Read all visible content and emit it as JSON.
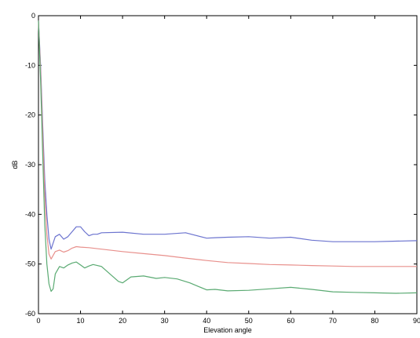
{
  "chart_data": {
    "type": "line",
    "xlabel": "Elevation angle",
    "ylabel": "dB",
    "xlim": [
      0,
      90
    ],
    "ylim": [
      -60,
      0
    ],
    "xticks": [
      0,
      10,
      20,
      30,
      40,
      50,
      60,
      70,
      80,
      90
    ],
    "yticks": [
      0,
      -10,
      -20,
      -30,
      -40,
      -50,
      -60
    ],
    "grid": false,
    "legend": "none",
    "series": [
      {
        "color": "#6c74cf",
        "x": [
          0,
          0.5,
          1,
          1.5,
          2,
          2.5,
          3,
          4,
          5,
          6,
          7,
          8,
          9,
          10,
          11,
          12,
          13,
          14,
          15,
          20,
          25,
          30,
          35,
          40,
          42,
          45,
          50,
          55,
          60,
          65,
          70,
          75,
          80,
          85,
          90
        ],
        "y": [
          -1,
          -10,
          -22,
          -33,
          -40,
          -45,
          -47,
          -44.5,
          -44,
          -45,
          -44.5,
          -43.5,
          -42.5,
          -42.5,
          -43.5,
          -44.3,
          -44,
          -44,
          -43.7,
          -43.6,
          -44,
          -44,
          -43.7,
          -44.8,
          -44.7,
          -44.6,
          -44.5,
          -44.8,
          -44.6,
          -45.2,
          -45.5,
          -45.5,
          -45.5,
          -45.4,
          -45.3
        ]
      },
      {
        "color": "#e8908c",
        "x": [
          0,
          0.5,
          1,
          1.5,
          2,
          2.5,
          3,
          4,
          5,
          6,
          7,
          8,
          9,
          10,
          12,
          15,
          20,
          25,
          30,
          35,
          40,
          45,
          50,
          55,
          60,
          65,
          70,
          75,
          80,
          85,
          90
        ],
        "y": [
          -1,
          -11,
          -24,
          -36,
          -44,
          -48,
          -49,
          -47.5,
          -47.2,
          -47.6,
          -47.3,
          -46.8,
          -46.5,
          -46.6,
          -46.7,
          -47,
          -47.5,
          -47.9,
          -48.3,
          -48.8,
          -49.3,
          -49.7,
          -49.9,
          -50.1,
          -50.2,
          -50.3,
          -50.4,
          -50.5,
          -50.5,
          -50.5,
          -50.5
        ]
      },
      {
        "color": "#5aaa72",
        "x": [
          0,
          0.5,
          1,
          1.5,
          2,
          2.5,
          3,
          3.5,
          4,
          5,
          6,
          7,
          8,
          9,
          10,
          11,
          12,
          13,
          14,
          15,
          17,
          19,
          20,
          22,
          25,
          28,
          30,
          33,
          36,
          38,
          40,
          42,
          45,
          50,
          55,
          60,
          65,
          70,
          75,
          80,
          85,
          90
        ],
        "y": [
          -1,
          -13,
          -28,
          -42,
          -50,
          -54,
          -55.5,
          -55,
          -52,
          -50.5,
          -50.8,
          -50.2,
          -49.8,
          -49.6,
          -50.2,
          -50.8,
          -50.4,
          -50.1,
          -50.3,
          -50.5,
          -52,
          -53.5,
          -53.8,
          -52.6,
          -52.4,
          -52.9,
          -52.7,
          -53,
          -53.8,
          -54.5,
          -55.2,
          -55.1,
          -55.4,
          -55.3,
          -55,
          -54.7,
          -55.1,
          -55.6,
          -55.7,
          -55.8,
          -55.9,
          -55.8
        ]
      }
    ]
  }
}
